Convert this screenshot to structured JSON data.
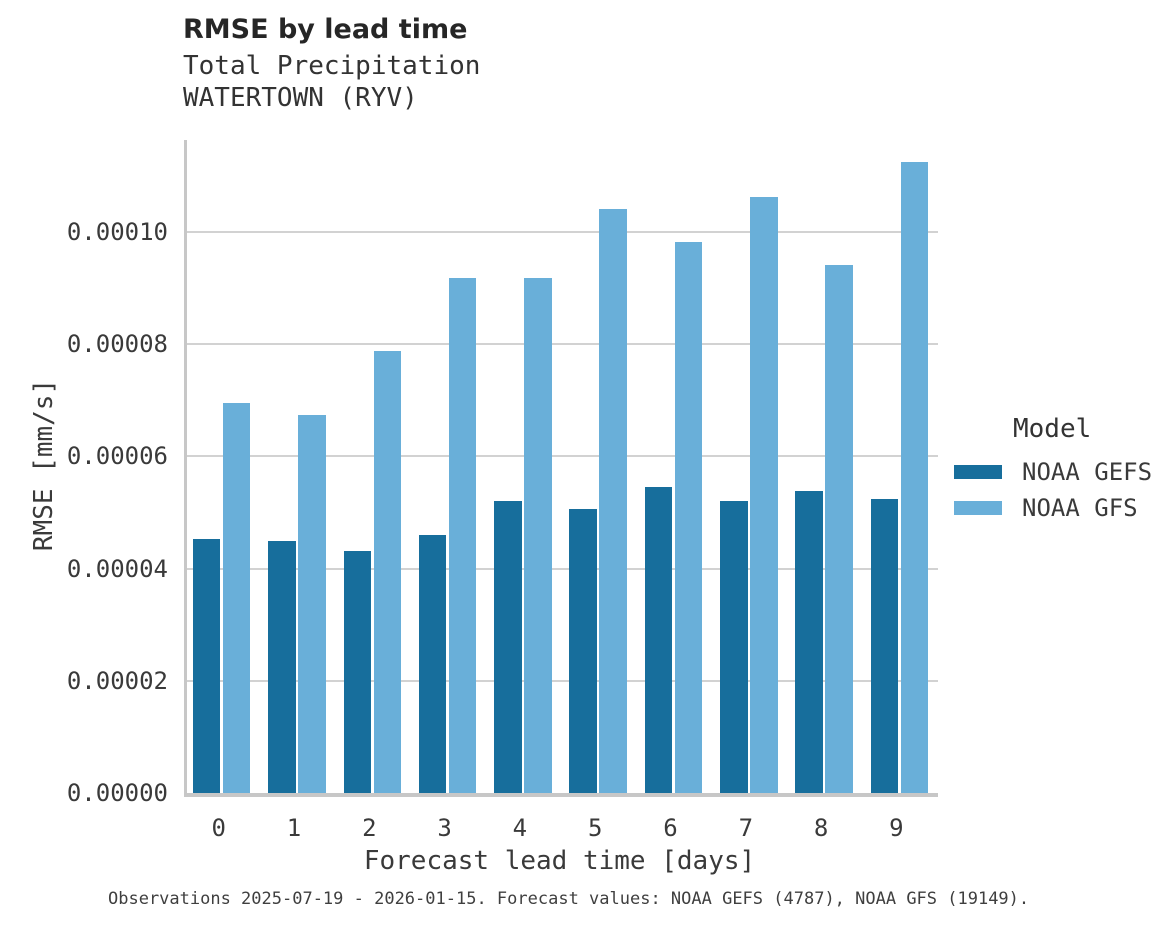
{
  "header": {
    "title": "RMSE by lead time",
    "subtitle_line1": "Total Precipitation",
    "subtitle_line2": "WATERTOWN (RYV)"
  },
  "chart_data": {
    "type": "bar",
    "title": "RMSE by lead time",
    "subtitle": [
      "Total Precipitation",
      "WATERTOWN (RYV)"
    ],
    "categories": [
      "0",
      "1",
      "2",
      "3",
      "4",
      "5",
      "6",
      "7",
      "8",
      "9"
    ],
    "series": [
      {
        "name": "NOAA GEFS",
        "color": "#176E9C",
        "values": [
          4.52e-05,
          4.49e-05,
          4.31e-05,
          4.6e-05,
          5.21e-05,
          5.06e-05,
          5.45e-05,
          5.2e-05,
          5.38e-05,
          5.24e-05
        ]
      },
      {
        "name": "NOAA GFS",
        "color": "#69AFD9",
        "values": [
          6.95e-05,
          6.73e-05,
          7.88e-05,
          9.18e-05,
          9.18e-05,
          0.0001041,
          9.83e-05,
          0.0001063,
          9.42e-05,
          0.0001124
        ]
      }
    ],
    "xlabel": "Forecast lead time [days]",
    "ylabel": "RMSE [mm/s]",
    "ylim": [
      0,
      0.0001164
    ],
    "yticks": [
      0,
      2e-05,
      4e-05,
      6e-05,
      8e-05,
      0.0001
    ],
    "ytick_labels": [
      "0.00000",
      "0.00002",
      "0.00004",
      "0.00006",
      "0.00008",
      "0.00010"
    ],
    "grid": true,
    "legend_position": "right"
  },
  "legend": {
    "title": "Model",
    "items": [
      {
        "label": "NOAA GEFS",
        "color": "#176E9C"
      },
      {
        "label": "NOAA GFS",
        "color": "#69AFD9"
      }
    ]
  },
  "footer": {
    "caption": "Observations 2025-07-19 - 2026-01-15. Forecast values: NOAA GEFS (4787), NOAA GFS (19149)."
  },
  "colors": {
    "gridline": "#d2d2d2",
    "axis_line": "#c7c7c7",
    "dark_series": "#176E9C",
    "light_series": "#69AFD9"
  }
}
